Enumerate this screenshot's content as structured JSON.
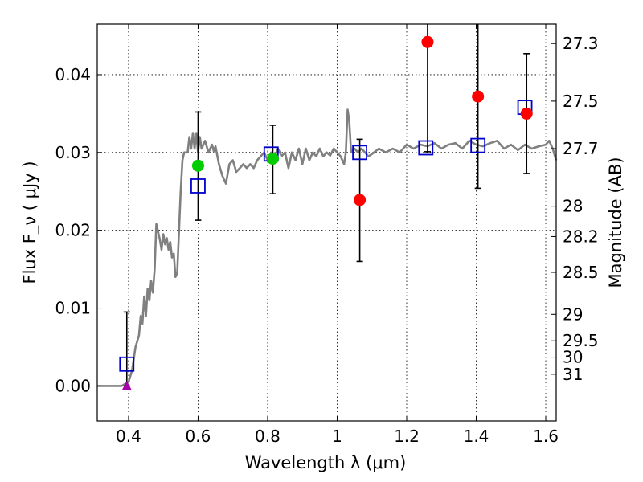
{
  "chart_data": {
    "type": "scatter",
    "xlabel": "Wavelength  λ (μm)",
    "ylabel_left": "Flux  F_ν  ( μJy )",
    "ylabel_right": "Magnitude (AB)",
    "xlim": [
      0.31,
      1.63
    ],
    "ylim": [
      -0.0045,
      0.0465
    ],
    "x_ticks": [
      0.4,
      0.6,
      0.8,
      1.0,
      1.2,
      1.4,
      1.6
    ],
    "x_tick_labels": [
      "0.4",
      "0.6",
      "0.8",
      "1",
      "1.2",
      "1.4",
      "1.6"
    ],
    "y_ticks": [
      0.0,
      0.01,
      0.02,
      0.03,
      0.04
    ],
    "y_tick_labels": [
      "0.00",
      "0.01",
      "0.02",
      "0.03",
      "0.04"
    ],
    "right_ticks": [
      {
        "label": "27.3",
        "flux": 0.044
      },
      {
        "label": "27.5",
        "flux": 0.0366
      },
      {
        "label": "27.7",
        "flux": 0.0305
      },
      {
        "label": "28",
        "flux": 0.0231
      },
      {
        "label": "28.2",
        "flux": 0.0192
      },
      {
        "label": "28.5",
        "flux": 0.0146
      },
      {
        "label": "29",
        "flux": 0.0092
      },
      {
        "label": "29.5",
        "flux": 0.0058
      },
      {
        "label": "30",
        "flux": 0.0037
      },
      {
        "label": "31",
        "flux": 0.0015
      }
    ],
    "grid": true,
    "colors": {
      "model": "#808080",
      "model_photometry": "#0000cc",
      "observed_red": "#ff0000",
      "observed_green": "#00cc00",
      "upper_limit": "#aa00aa",
      "errorbar": "#000000"
    },
    "series": [
      {
        "name": "model-sed",
        "style": "line",
        "points": [
          [
            0.31,
            0.0
          ],
          [
            0.38,
            0.0
          ],
          [
            0.4,
            0.0005
          ],
          [
            0.41,
            0.002
          ],
          [
            0.42,
            0.005
          ],
          [
            0.43,
            0.0065
          ],
          [
            0.435,
            0.009
          ],
          [
            0.44,
            0.008
          ],
          [
            0.445,
            0.0115
          ],
          [
            0.45,
            0.009
          ],
          [
            0.455,
            0.0125
          ],
          [
            0.46,
            0.011
          ],
          [
            0.465,
            0.0135
          ],
          [
            0.47,
            0.012
          ],
          [
            0.475,
            0.015
          ],
          [
            0.48,
            0.0208
          ],
          [
            0.49,
            0.0188
          ],
          [
            0.495,
            0.0175
          ],
          [
            0.5,
            0.0195
          ],
          [
            0.505,
            0.0182
          ],
          [
            0.51,
            0.019
          ],
          [
            0.515,
            0.0175
          ],
          [
            0.52,
            0.0185
          ],
          [
            0.525,
            0.0165
          ],
          [
            0.53,
            0.017
          ],
          [
            0.535,
            0.014
          ],
          [
            0.54,
            0.0145
          ],
          [
            0.55,
            0.025
          ],
          [
            0.555,
            0.029
          ],
          [
            0.56,
            0.03
          ],
          [
            0.57,
            0.03
          ],
          [
            0.575,
            0.032
          ],
          [
            0.58,
            0.0305
          ],
          [
            0.585,
            0.0325
          ],
          [
            0.59,
            0.0305
          ],
          [
            0.595,
            0.0325
          ],
          [
            0.6,
            0.03
          ],
          [
            0.605,
            0.032
          ],
          [
            0.61,
            0.0305
          ],
          [
            0.62,
            0.0315
          ],
          [
            0.63,
            0.03
          ],
          [
            0.64,
            0.031
          ],
          [
            0.645,
            0.0302
          ],
          [
            0.65,
            0.0308
          ],
          [
            0.66,
            0.0285
          ],
          [
            0.67,
            0.027
          ],
          [
            0.68,
            0.026
          ],
          [
            0.69,
            0.0285
          ],
          [
            0.7,
            0.029
          ],
          [
            0.71,
            0.0275
          ],
          [
            0.72,
            0.028
          ],
          [
            0.73,
            0.0285
          ],
          [
            0.74,
            0.028
          ],
          [
            0.75,
            0.0285
          ],
          [
            0.76,
            0.028
          ],
          [
            0.77,
            0.029
          ],
          [
            0.78,
            0.0295
          ],
          [
            0.79,
            0.03
          ],
          [
            0.8,
            0.029
          ],
          [
            0.81,
            0.03
          ],
          [
            0.82,
            0.0295
          ],
          [
            0.83,
            0.0305
          ],
          [
            0.84,
            0.0295
          ],
          [
            0.85,
            0.03
          ],
          [
            0.86,
            0.028
          ],
          [
            0.87,
            0.03
          ],
          [
            0.88,
            0.029
          ],
          [
            0.89,
            0.0305
          ],
          [
            0.9,
            0.0285
          ],
          [
            0.91,
            0.0305
          ],
          [
            0.92,
            0.029
          ],
          [
            0.93,
            0.03
          ],
          [
            0.94,
            0.0295
          ],
          [
            0.95,
            0.0305
          ],
          [
            0.96,
            0.0295
          ],
          [
            0.97,
            0.03
          ],
          [
            0.98,
            0.0296
          ],
          [
            0.99,
            0.0305
          ],
          [
            1.0,
            0.03
          ],
          [
            1.01,
            0.0295
          ],
          [
            1.02,
            0.0285
          ],
          [
            1.025,
            0.03
          ],
          [
            1.03,
            0.0355
          ],
          [
            1.035,
            0.034
          ],
          [
            1.04,
            0.03
          ],
          [
            1.05,
            0.0305
          ],
          [
            1.06,
            0.03
          ],
          [
            1.07,
            0.0305
          ],
          [
            1.08,
            0.03
          ],
          [
            1.09,
            0.0295
          ],
          [
            1.1,
            0.0298
          ],
          [
            1.12,
            0.0305
          ],
          [
            1.14,
            0.03
          ],
          [
            1.16,
            0.0305
          ],
          [
            1.18,
            0.03
          ],
          [
            1.2,
            0.031
          ],
          [
            1.22,
            0.0305
          ],
          [
            1.24,
            0.031
          ],
          [
            1.26,
            0.0308
          ],
          [
            1.28,
            0.0312
          ],
          [
            1.3,
            0.0305
          ],
          [
            1.32,
            0.031
          ],
          [
            1.34,
            0.0312
          ],
          [
            1.36,
            0.0305
          ],
          [
            1.38,
            0.0315
          ],
          [
            1.4,
            0.031
          ],
          [
            1.42,
            0.0308
          ],
          [
            1.44,
            0.0312
          ],
          [
            1.46,
            0.0315
          ],
          [
            1.48,
            0.0305
          ],
          [
            1.5,
            0.031
          ],
          [
            1.52,
            0.0303
          ],
          [
            1.54,
            0.031
          ],
          [
            1.56,
            0.0305
          ],
          [
            1.58,
            0.0308
          ],
          [
            1.6,
            0.031
          ],
          [
            1.61,
            0.0315
          ],
          [
            1.62,
            0.0305
          ],
          [
            1.63,
            0.029
          ]
        ]
      },
      {
        "name": "model-photometry",
        "style": "open-square",
        "points": [
          [
            0.395,
            0.0028
          ],
          [
            0.6,
            0.0257
          ],
          [
            0.81,
            0.0298
          ],
          [
            1.065,
            0.03
          ],
          [
            1.255,
            0.0306
          ],
          [
            1.405,
            0.0309
          ],
          [
            1.54,
            0.0358
          ]
        ]
      },
      {
        "name": "observed-red",
        "style": "filled-circle",
        "points": [
          [
            1.065,
            0.0239,
            0.016,
            0.0317
          ],
          [
            1.26,
            0.0442,
            0.0301,
            0.048
          ],
          [
            1.405,
            0.0372,
            0.0254,
            0.048
          ],
          [
            1.545,
            0.035,
            0.0273,
            0.0427
          ]
        ]
      },
      {
        "name": "observed-green",
        "style": "filled-circle",
        "points": [
          [
            0.6,
            0.0283,
            0.0213,
            0.0352
          ],
          [
            0.815,
            0.0292,
            0.0247,
            0.0335
          ]
        ]
      },
      {
        "name": "upper-limit",
        "style": "triangle",
        "points": [
          [
            0.395,
            0.0,
            0.0,
            0.0095
          ]
        ]
      }
    ]
  }
}
